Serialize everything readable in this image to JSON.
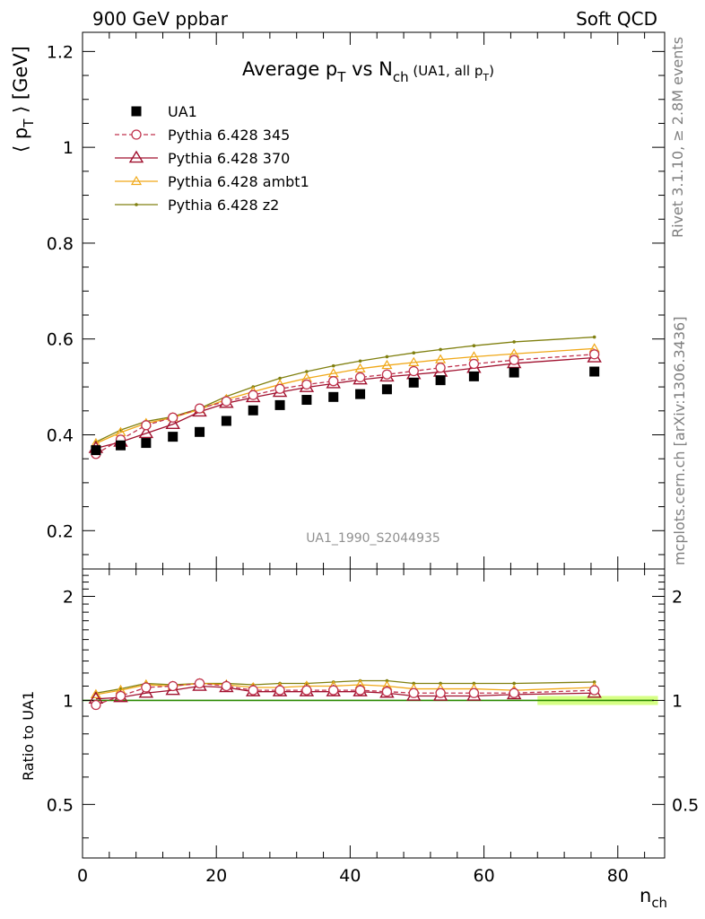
{
  "header": {
    "left": "900 GeV ppbar",
    "right": "Soft QCD"
  },
  "side_text": {
    "rivet": "Rivet 3.1.10, ≥ 2.8M events",
    "mcplots": "mcplots.cern.ch [arXiv:1306.3436]"
  },
  "chart_data": {
    "type": "scatter",
    "title": {
      "prefix": "Average p",
      "prefix_sub": "T",
      "middle": " vs N",
      "middle_sub": "ch",
      "suffix_open": " (UA1, all p",
      "suffix_sub": "T",
      "suffix_close": ")"
    },
    "ylabel": {
      "open": "⟨ p",
      "sub": "T",
      "close": " ⟩ [GeV]"
    },
    "ratio_ylabel": "Ratio to UA1",
    "xlabel": {
      "base": "n",
      "sub": "ch"
    },
    "analysis_id": "UA1_1990_S2044935",
    "xlim": [
      0,
      87
    ],
    "ylim": [
      0.12,
      1.24
    ],
    "ratio_ylim": [
      0.35,
      2.4
    ],
    "x_ticks": [
      "0",
      "20",
      "40",
      "60",
      "80"
    ],
    "y_ticks": [
      "0.2",
      "0.4",
      "0.6",
      "0.8",
      "1",
      "1.2"
    ],
    "ratio_ticks": [
      "0.5",
      "1",
      "2"
    ],
    "x": [
      2,
      5.7,
      9.5,
      13.5,
      17.5,
      21.5,
      25.5,
      29.5,
      33.5,
      37.5,
      41.5,
      45.5,
      49.5,
      53.5,
      58.5,
      64.5,
      76.5
    ],
    "series": [
      {
        "name": "UA1",
        "color": "#000000",
        "marker": "square",
        "values": [
          0.368,
          0.378,
          0.383,
          0.396,
          0.406,
          0.429,
          0.451,
          0.462,
          0.473,
          0.479,
          0.485,
          0.495,
          0.509,
          0.514,
          0.522,
          0.53,
          0.532
        ],
        "ratio": [
          1,
          1,
          1,
          1,
          1,
          1,
          1,
          1,
          1,
          1,
          1,
          1,
          1,
          1,
          1,
          1,
          1
        ]
      },
      {
        "name": "Pythia 6.428 345",
        "color": "#c0334d",
        "marker": "circle",
        "dashed": true,
        "values": [
          0.36,
          0.39,
          0.42,
          0.436,
          0.455,
          0.47,
          0.483,
          0.496,
          0.505,
          0.512,
          0.52,
          0.526,
          0.533,
          0.54,
          0.548,
          0.556,
          0.568
        ],
        "ratio": [
          0.97,
          1.03,
          1.09,
          1.1,
          1.12,
          1.1,
          1.07,
          1.07,
          1.07,
          1.07,
          1.07,
          1.06,
          1.05,
          1.05,
          1.05,
          1.05,
          1.07
        ]
      },
      {
        "name": "Pythia 6.428 370",
        "color": "#a0102e",
        "marker": "triangle",
        "values": [
          0.372,
          0.385,
          0.403,
          0.422,
          0.448,
          0.466,
          0.478,
          0.489,
          0.499,
          0.507,
          0.515,
          0.521,
          0.526,
          0.531,
          0.539,
          0.549,
          0.561
        ],
        "ratio": [
          1.01,
          1.02,
          1.05,
          1.07,
          1.1,
          1.09,
          1.06,
          1.06,
          1.06,
          1.06,
          1.06,
          1.05,
          1.03,
          1.03,
          1.03,
          1.04,
          1.05
        ]
      },
      {
        "name": "Pythia 6.428 ambt1",
        "color": "#f0a818",
        "marker": "triangle-small",
        "values": [
          0.382,
          0.405,
          0.424,
          0.436,
          0.453,
          0.474,
          0.49,
          0.505,
          0.518,
          0.528,
          0.538,
          0.545,
          0.551,
          0.557,
          0.563,
          0.569,
          0.58
        ],
        "ratio": [
          1.04,
          1.07,
          1.11,
          1.1,
          1.12,
          1.11,
          1.09,
          1.09,
          1.1,
          1.1,
          1.11,
          1.1,
          1.08,
          1.08,
          1.08,
          1.07,
          1.09
        ]
      },
      {
        "name": "Pythia 6.428 z2",
        "color": "#808010",
        "marker": "dot",
        "values": [
          0.385,
          0.41,
          0.428,
          0.438,
          0.455,
          0.48,
          0.5,
          0.518,
          0.532,
          0.544,
          0.554,
          0.563,
          0.571,
          0.578,
          0.586,
          0.594,
          0.604
        ],
        "ratio": [
          1.05,
          1.08,
          1.12,
          1.11,
          1.12,
          1.12,
          1.11,
          1.12,
          1.12,
          1.13,
          1.14,
          1.14,
          1.12,
          1.12,
          1.12,
          1.12,
          1.13
        ]
      }
    ],
    "ratio_band": {
      "color": "#ccff66",
      "x_start": 68,
      "x_end": 86,
      "low": 0.97,
      "high": 1.03
    }
  }
}
